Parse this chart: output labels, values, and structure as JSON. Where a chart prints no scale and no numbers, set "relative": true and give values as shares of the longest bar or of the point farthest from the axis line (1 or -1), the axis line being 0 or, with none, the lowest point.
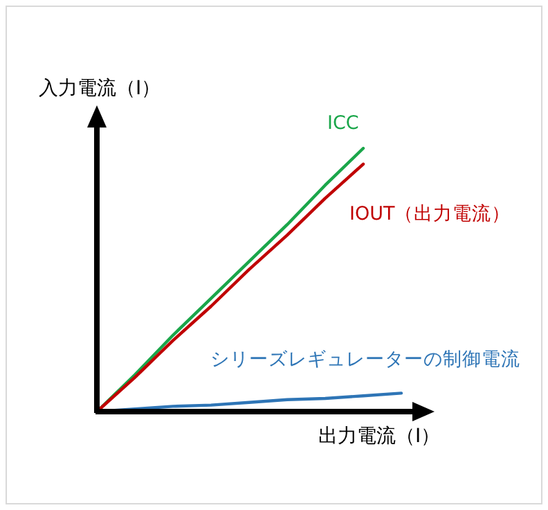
{
  "chart_data": {
    "type": "line",
    "relative": true,
    "xlabel": "出力電流（I）",
    "ylabel": "入力電流（I）",
    "legend": false,
    "grid": false,
    "marker": "none",
    "line_style": "solid",
    "categories": [
      null,
      null,
      null,
      null,
      null,
      null,
      null,
      null,
      null
    ],
    "series": [
      {
        "name": "ICC",
        "color": "#1aa64a",
        "values": [
          0,
          0.14,
          0.29,
          0.43,
          0.57,
          0.71,
          0.86,
          1,
          null
        ]
      },
      {
        "name": "IOUT（出力電流）",
        "color": "#c00000",
        "values": [
          0,
          0.13,
          0.27,
          0.4,
          0.54,
          0.67,
          0.81,
          0.94,
          null
        ]
      },
      {
        "name": "シリーズレギュレーターの制御電流",
        "color": "#2e75b6",
        "values": [
          0,
          0.01,
          0.02,
          0.025,
          0.035,
          0.045,
          0.05,
          0.06,
          0.07
        ]
      }
    ]
  }
}
